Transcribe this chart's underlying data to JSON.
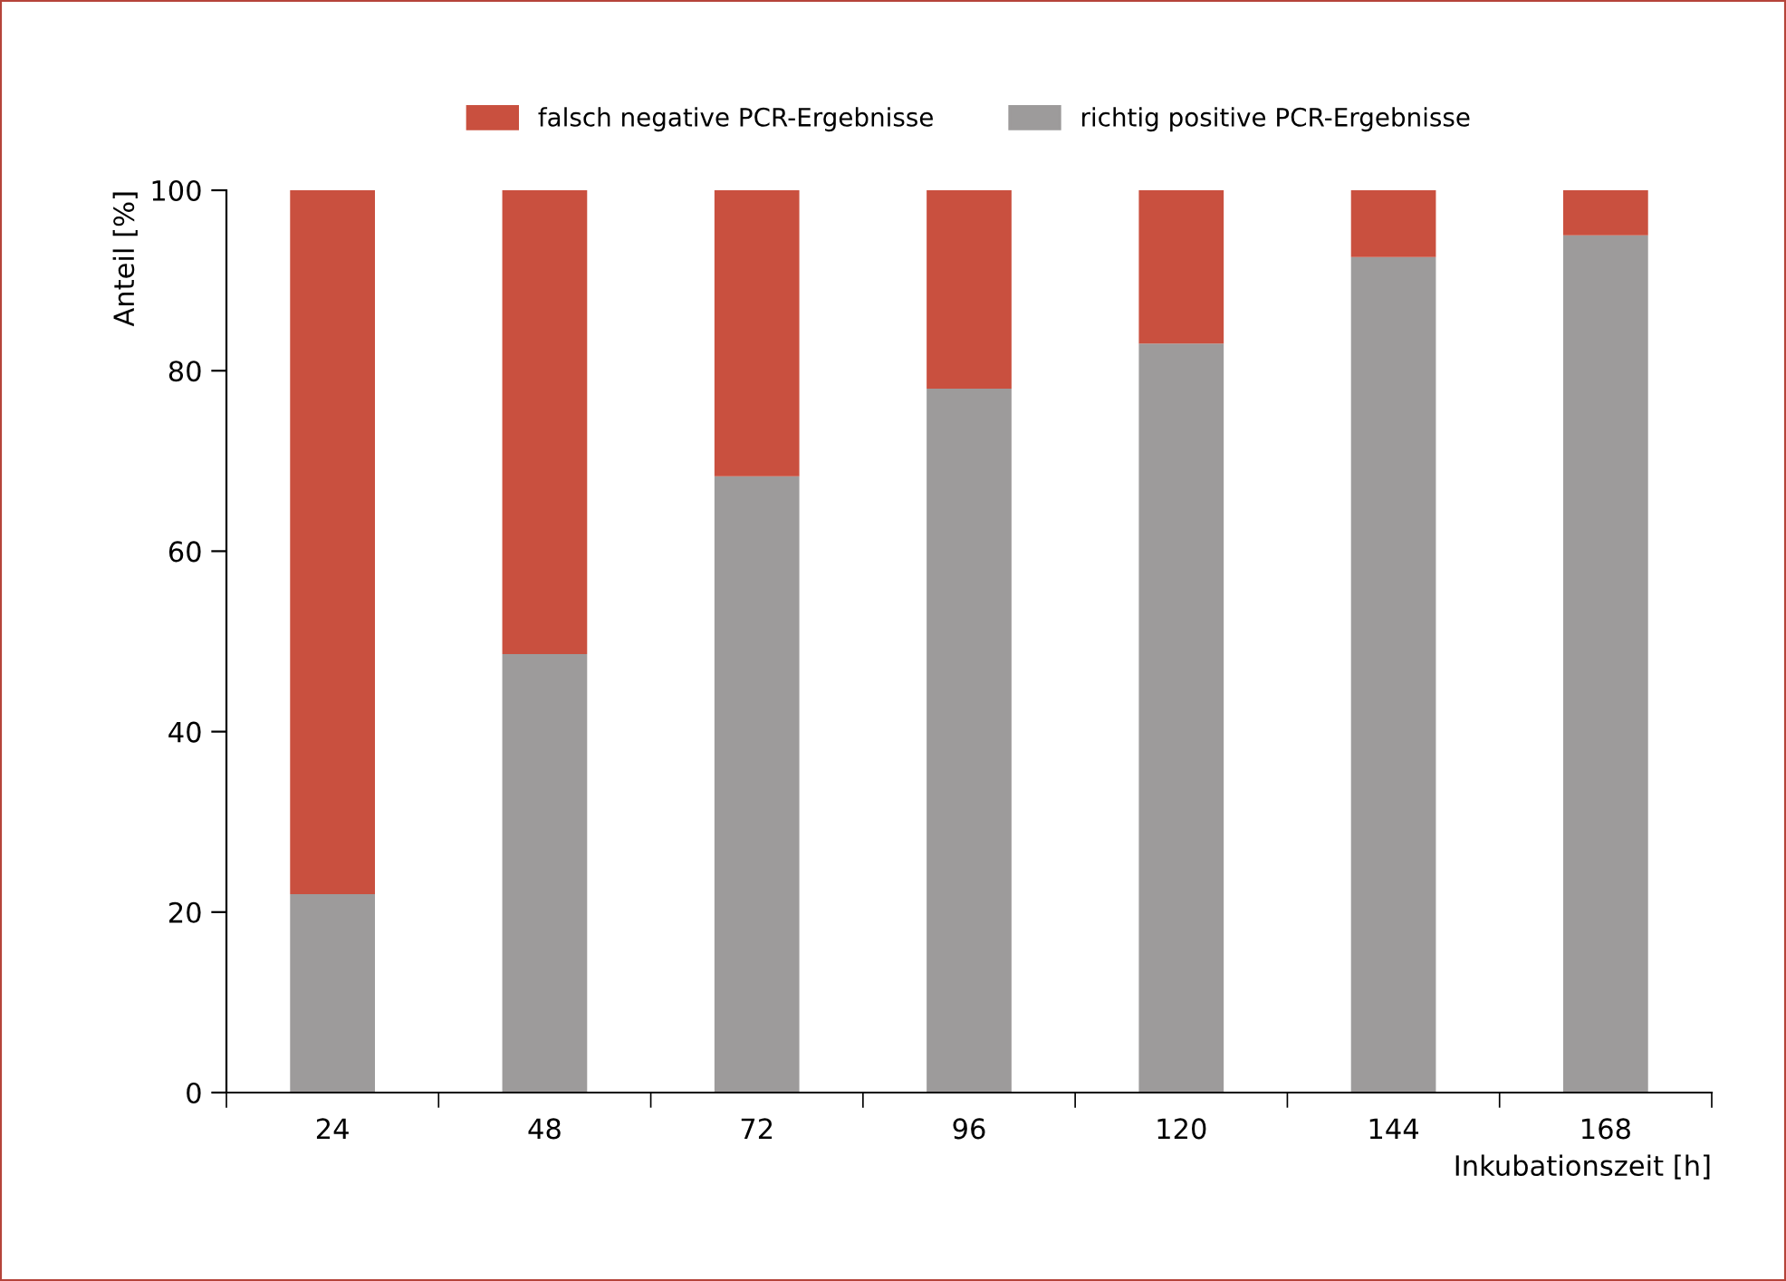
{
  "chart_data": {
    "type": "bar",
    "stacked": true,
    "xlabel": "Inkubationszeit [h]",
    "ylabel": "Anteil [%]",
    "categories": [
      "24",
      "48",
      "72",
      "96",
      "120",
      "144",
      "168"
    ],
    "series": [
      {
        "name": "richtig positive PCR-Ergebnisse",
        "color": "#9d9b9b",
        "values": [
          22,
          48.6,
          68.3,
          78,
          83,
          92.6,
          95
        ]
      },
      {
        "name": "falsch negative PCR-Ergebnisse",
        "color": "#c9503f",
        "values": [
          78,
          51.4,
          31.7,
          22,
          17,
          7.4,
          5
        ]
      }
    ],
    "ylim": [
      0,
      100
    ],
    "yticks": [
      0,
      20,
      40,
      60,
      80,
      100
    ],
    "grid": false,
    "legend": "top"
  }
}
